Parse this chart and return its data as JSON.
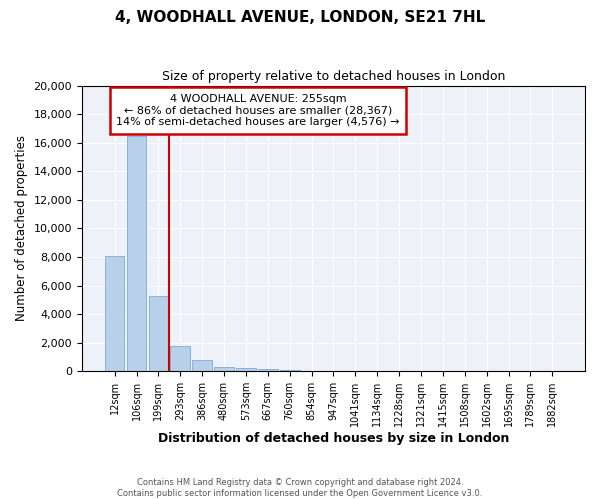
{
  "title": "4, WOODHALL AVENUE, LONDON, SE21 7HL",
  "subtitle": "Size of property relative to detached houses in London",
  "xlabel": "Distribution of detached houses by size in London",
  "ylabel": "Number of detached properties",
  "footer_line1": "Contains HM Land Registry data © Crown copyright and database right 2024.",
  "footer_line2": "Contains public sector information licensed under the Open Government Licence v3.0.",
  "annotation_title": "4 WOODHALL AVENUE: 255sqm",
  "annotation_line2": "← 86% of detached houses are smaller (28,367)",
  "annotation_line3": "14% of semi-detached houses are larger (4,576) →",
  "bar_labels": [
    "12sqm",
    "106sqm",
    "199sqm",
    "293sqm",
    "386sqm",
    "480sqm",
    "573sqm",
    "667sqm",
    "760sqm",
    "854sqm",
    "947sqm",
    "1041sqm",
    "1134sqm",
    "1228sqm",
    "1321sqm",
    "1415sqm",
    "1508sqm",
    "1602sqm",
    "1695sqm",
    "1789sqm",
    "1882sqm"
  ],
  "bar_values": [
    8100,
    16500,
    5300,
    1800,
    800,
    300,
    200,
    150,
    100,
    0,
    0,
    0,
    0,
    0,
    0,
    0,
    0,
    0,
    0,
    0,
    0
  ],
  "bar_color": "#b8d0ea",
  "bar_edge_color": "#7aaed4",
  "vline_color": "#cc0000",
  "vline_x_index": 2.5,
  "annotation_box_color": "#ffffff",
  "annotation_box_edge": "#cc0000",
  "background_color": "#eef2f8",
  "ylim": [
    0,
    20000
  ],
  "yticks": [
    0,
    2000,
    4000,
    6000,
    8000,
    10000,
    12000,
    14000,
    16000,
    18000,
    20000
  ]
}
